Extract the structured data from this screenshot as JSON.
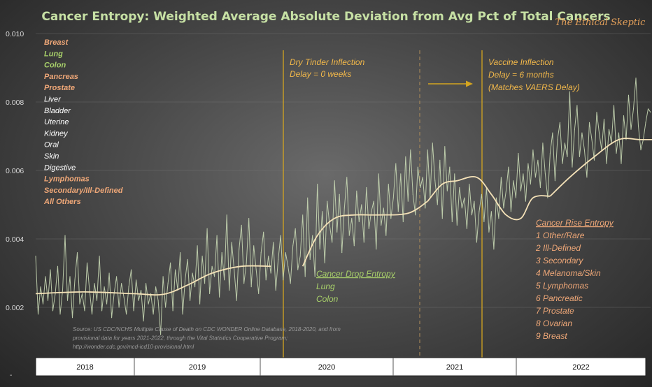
{
  "chart_data": {
    "type": "line",
    "title": "Cancer Entropy: Weighted Average Absolute Deviation from Avg Pct of Total Cancers",
    "brand": "The Ethical Skeptic",
    "xlabel": "",
    "ylabel": "",
    "ylim": [
      0.0,
      0.01
    ],
    "y_ticks": [
      "0.010",
      "0.008",
      "0.006",
      "0.004",
      "0.002"
    ],
    "y_bottom_label": "-",
    "grid": true,
    "years": [
      "2018",
      "2019",
      "2020",
      "2021",
      "2022"
    ],
    "legend_list": [
      {
        "label": "Breast",
        "color": "#f0a878"
      },
      {
        "label": "Lung",
        "color": "#a8d06a"
      },
      {
        "label": "Colon",
        "color": "#a8d06a"
      },
      {
        "label": "Pancreas",
        "color": "#f0a878"
      },
      {
        "label": "Prostate",
        "color": "#f0a878"
      },
      {
        "label": "Liver",
        "color": "#ffffff"
      },
      {
        "label": "Bladder",
        "color": "#ffffff"
      },
      {
        "label": "Uterine",
        "color": "#ffffff"
      },
      {
        "label": "Kidney",
        "color": "#ffffff"
      },
      {
        "label": "Oral",
        "color": "#ffffff"
      },
      {
        "label": "Skin",
        "color": "#ffffff"
      },
      {
        "label": "Digestive",
        "color": "#ffffff"
      },
      {
        "label": "Lymphomas",
        "color": "#f0a878"
      },
      {
        "label": "Secondary/Ill-Defined",
        "color": "#f0a878"
      },
      {
        "label": "All Others",
        "color": "#f0a878"
      }
    ],
    "annotations": {
      "dry_tinder": [
        "Dry Tinder Inflection",
        "Delay = 0 weeks"
      ],
      "vaccine": [
        "Vaccine Inflection",
        "Delay = 6 months",
        "(Matches VAERS Delay)"
      ],
      "drop_title": "Cancer Drop Entropy",
      "drop_items": [
        "Lung",
        "Colon"
      ],
      "rise_title": "Cancer Rise Entropy",
      "rise_items": [
        "1 Other/Rare",
        "2 Ill-Defined",
        "3 Secondary",
        "4 Melanoma/Skin",
        "5 Lymphomas",
        "6 Pancreatic",
        "7 Prostate",
        "8 Ovarian",
        "9 Breast"
      ]
    },
    "source": [
      "Source: US CDC/NCHS Multiple Cause of Death on CDC WONDER Online Database, 2018-2020, and from",
      "provisional data for years 2021-2022, through the Vital Statistics Cooperative Program;",
      "http://wonder.cdc.gov/mcd-icd10-provisional.html"
    ],
    "series": [
      {
        "role": "weekly",
        "color": "#c8d8b4",
        "values": [
          0.0035,
          0.0018,
          0.0026,
          0.0021,
          0.0029,
          0.0022,
          0.0031,
          0.0019,
          0.0024,
          0.0032,
          0.0018,
          0.0025,
          0.0041,
          0.0022,
          0.0029,
          0.0017,
          0.0028,
          0.0036,
          0.0021,
          0.0024,
          0.0019,
          0.0033,
          0.0025,
          0.0018,
          0.0027,
          0.0022,
          0.0035,
          0.0019,
          0.0026,
          0.0021,
          0.003,
          0.0017,
          0.0024,
          0.0029,
          0.002,
          0.0027,
          0.0023,
          0.0018,
          0.0026,
          0.0031,
          0.0019,
          0.0028,
          0.0022,
          0.0025,
          0.0016,
          0.0027,
          0.0021,
          0.0024,
          0.0018,
          0.0026,
          0.0022,
          0.0012,
          0.0029,
          0.002,
          0.0027,
          0.0033,
          0.0019,
          0.0031,
          0.0025,
          0.0036,
          0.0018,
          0.0028,
          0.0034,
          0.0022,
          0.003,
          0.0026,
          0.0038,
          0.0021,
          0.0035,
          0.0027,
          0.0043,
          0.0024,
          0.0032,
          0.0029,
          0.0041,
          0.0023,
          0.0036,
          0.0028,
          0.0047,
          0.0025,
          0.0039,
          0.0031,
          0.0022,
          0.0037,
          0.0044,
          0.0027,
          0.0033,
          0.0046,
          0.0026,
          0.0038,
          0.0031,
          0.0024,
          0.0036,
          0.0042,
          0.0028,
          0.0035,
          0.003,
          0.0039,
          0.0025,
          0.0034,
          0.0041,
          0.0028,
          0.0036,
          0.0032,
          0.0027,
          0.0038,
          0.0043,
          0.0031,
          0.0035,
          0.0047,
          0.0029,
          0.0052,
          0.0034,
          0.0041,
          0.0029,
          0.0056,
          0.0037,
          0.0048,
          0.0033,
          0.0051,
          0.0044,
          0.0039,
          0.0057,
          0.0042,
          0.0053,
          0.0036,
          0.0049,
          0.0058,
          0.0041,
          0.0046,
          0.0038,
          0.0054,
          0.0045,
          0.005,
          0.0039,
          0.0055,
          0.0043,
          0.0048,
          0.0051,
          0.0037,
          0.0059,
          0.0044,
          0.0049,
          0.0041,
          0.0056,
          0.0046,
          0.0052,
          0.0062,
          0.0048,
          0.0059,
          0.0045,
          0.0064,
          0.0051,
          0.0066,
          0.0053,
          0.0047,
          0.0061,
          0.0055,
          0.0058,
          0.0049,
          0.0066,
          0.0052,
          0.0068,
          0.0057,
          0.005,
          0.0063,
          0.0046,
          0.0067,
          0.0054,
          0.0061,
          0.0045,
          0.0059,
          0.0044,
          0.0055,
          0.0049,
          0.0052,
          0.0043,
          0.0056,
          0.0047,
          0.0051,
          0.0039,
          0.0048,
          0.0053,
          0.0045,
          0.0055,
          0.0042,
          0.0048,
          0.0037,
          0.0052,
          0.0046,
          0.0058,
          0.0049,
          0.0054,
          0.0061,
          0.0048,
          0.0057,
          0.0052,
          0.0065,
          0.0054,
          0.0059,
          0.0051,
          0.0062,
          0.0056,
          0.0066,
          0.0058,
          0.0063,
          0.0055,
          0.0068,
          0.0059,
          0.0052,
          0.0065,
          0.0071,
          0.0057,
          0.0069,
          0.0074,
          0.0062,
          0.0068,
          0.0064,
          0.0083,
          0.0061,
          0.0072,
          0.0079,
          0.0064,
          0.0071,
          0.0066,
          0.0058,
          0.0074,
          0.0069,
          0.0063,
          0.0077,
          0.0071,
          0.0066,
          0.0075,
          0.0062,
          0.0072,
          0.0068,
          0.0079,
          0.0065,
          0.0071,
          0.0062,
          0.0076,
          0.0069,
          0.0082,
          0.0072,
          0.0078,
          0.0087,
          0.0073,
          0.0066,
          0.0069,
          0.0074,
          0.0078,
          0.0077
        ]
      },
      {
        "role": "trend",
        "color": "#f5e2b8",
        "segments": [
          {
            "x": [
              0,
              20,
              40,
              52,
              62,
              72,
              84,
              96
            ],
            "values": [
              0.0024,
              0.00245,
              0.0024,
              0.00238,
              0.00265,
              0.003,
              0.0032,
              0.0032
            ]
          },
          {
            "x": [
              109,
              115,
              122,
              130,
              140,
              152,
              160
            ],
            "values": [
              0.0032,
              0.0041,
              0.0046,
              0.0047,
              0.0047,
              0.00475,
              0.0051
            ]
          },
          {
            "x": [
              160,
              166,
              172,
              180,
              186,
              192,
              198,
              203,
              210
            ],
            "values": [
              0.0051,
              0.0056,
              0.0057,
              0.0058,
              0.0053,
              0.0047,
              0.0046,
              0.0052,
              0.00525
            ]
          },
          {
            "x": [
              210,
              218,
              228,
              238,
              247,
              256,
              262,
              267,
              269
            ],
            "values": [
              0.00525,
              0.0058,
              0.0064,
              0.0069,
              0.0069,
              0.0069,
              0.0069,
              0.00755,
              0.0079
            ]
          }
        ]
      }
    ],
    "colors": {
      "title": "#c6e0a4",
      "annotation": "#f2b84a",
      "drop": "#a8d06a",
      "rise": "#f0a878",
      "vline": "#d4a520"
    }
  }
}
